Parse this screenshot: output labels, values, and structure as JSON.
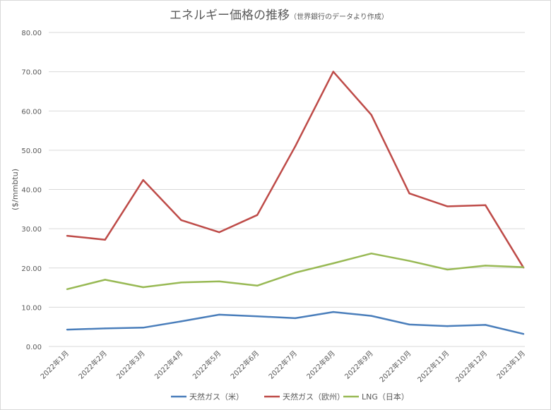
{
  "chart_data": {
    "type": "line",
    "title": "エネルギー価格の推移",
    "subtitle": "（世界銀行のデータより作成）",
    "ylabel": "($/mmbtu)",
    "xlabel": "",
    "ylim": [
      0,
      80
    ],
    "ytick_step": 10,
    "grid": true,
    "legend_position": "bottom",
    "categories": [
      "2022年1月",
      "2022年2月",
      "2022年3月",
      "2022年4月",
      "2022年5月",
      "2022年6月",
      "2022年7月",
      "2022年8月",
      "2022年9月",
      "2022年10月",
      "2022年11月",
      "2022年12月",
      "2023年1月"
    ],
    "series": [
      {
        "name": "天然ガス（米）",
        "color": "#4a7ebb",
        "values": [
          4.3,
          4.6,
          4.8,
          6.4,
          8.1,
          7.7,
          7.2,
          8.8,
          7.8,
          5.6,
          5.2,
          5.5,
          3.2
        ]
      },
      {
        "name": "天然ガス（欧州）",
        "color": "#be4b48",
        "values": [
          28.2,
          27.2,
          42.4,
          32.2,
          29.1,
          33.5,
          51.0,
          70.0,
          59.0,
          39.0,
          35.7,
          36.0,
          20.1
        ]
      },
      {
        "name": "LNG（日本）",
        "color": "#98b954",
        "values": [
          14.6,
          17.0,
          15.1,
          16.3,
          16.6,
          15.5,
          18.8,
          21.2,
          23.7,
          21.8,
          19.6,
          20.6,
          20.2
        ]
      }
    ]
  }
}
